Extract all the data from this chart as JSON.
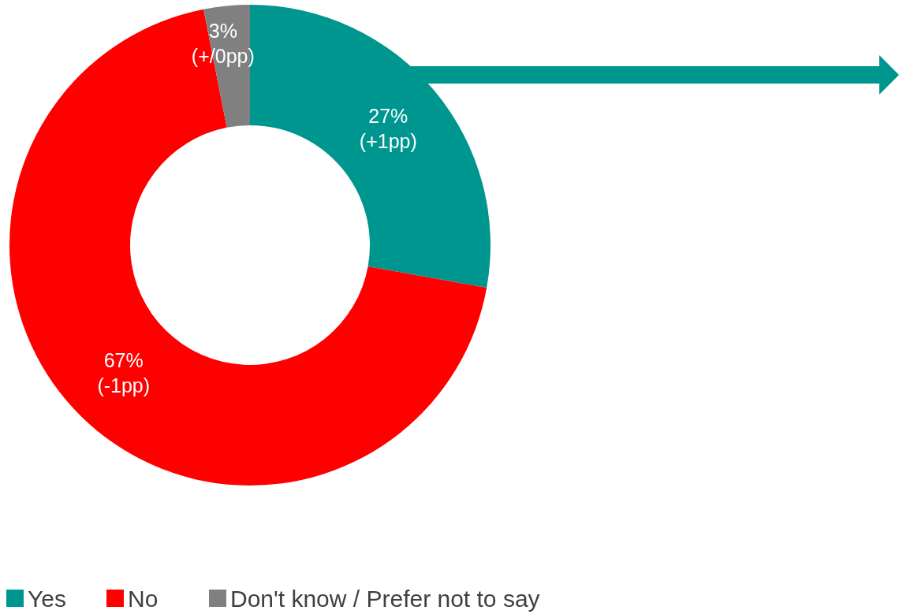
{
  "chart_data": {
    "type": "donut",
    "categories": [
      "Yes",
      "No",
      "Don't know / Prefer not to say"
    ],
    "values": [
      27,
      67,
      3
    ],
    "colors": [
      "#009690",
      "#ff0000",
      "#808080"
    ],
    "value_labels": [
      "27% (+1pp)",
      "67% (-1pp)",
      "3% (+/0pp)"
    ],
    "legend": "bottom"
  }
}
